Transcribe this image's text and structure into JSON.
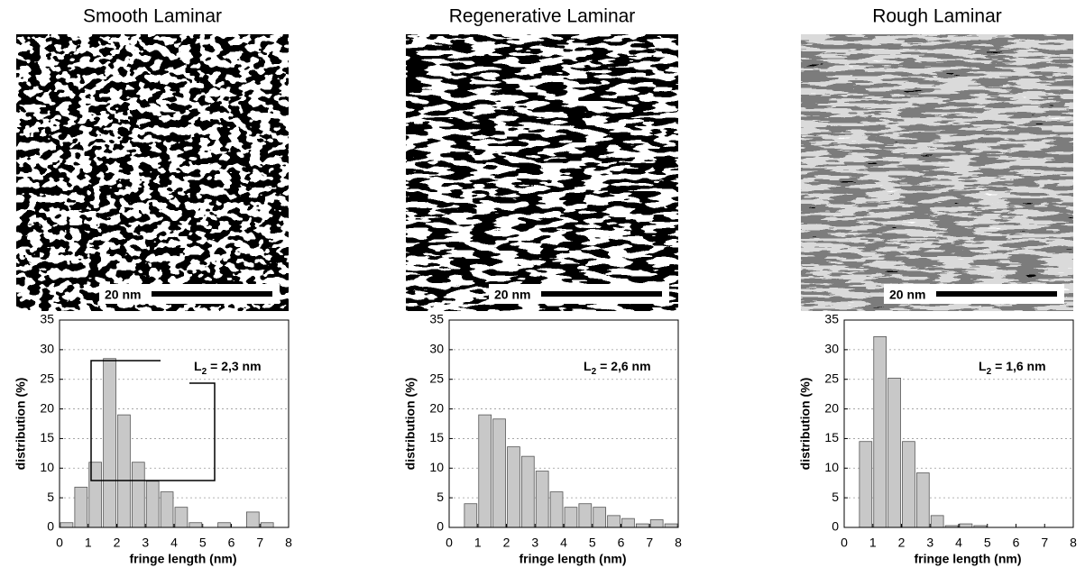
{
  "chart_data": [
    {
      "type": "histogram",
      "title": "Smooth Laminar",
      "scale_bar_label": "20 nm",
      "bins": [
        0,
        0.5,
        1,
        1.5,
        2,
        2.5,
        3,
        3.5,
        4,
        4.5,
        5,
        5.5,
        6,
        6.5,
        7,
        7.5,
        8
      ],
      "values": [
        0.8,
        6.8,
        11,
        28.5,
        19,
        11,
        7.8,
        6,
        3.4,
        0.8,
        0,
        0.8,
        0,
        2.6,
        0.8,
        0
      ],
      "color": "#c8c8c8",
      "xlim": [
        0,
        8
      ],
      "ylim": [
        0,
        35
      ],
      "xticks": [
        0,
        1,
        2,
        3,
        4,
        5,
        6,
        7,
        8
      ],
      "yticks": [
        0,
        5,
        10,
        15,
        20,
        25,
        30,
        35
      ],
      "grid": true,
      "xlabel": "fringe length (nm)",
      "ylabel": "distribution (%)",
      "annotation_symbol": "L",
      "annotation_subscript": "2",
      "annotation_value": "= 2,3 nm"
    },
    {
      "type": "histogram",
      "title": "Regenerative Laminar",
      "scale_bar_label": "20 nm",
      "bins": [
        0,
        0.5,
        1,
        1.5,
        2,
        2.5,
        3,
        3.5,
        4,
        4.5,
        5,
        5.5,
        6,
        6.5,
        7,
        7.5,
        8
      ],
      "values": [
        0,
        4,
        19,
        18.3,
        13.6,
        12,
        9.5,
        6,
        3.4,
        4,
        3.4,
        2,
        1.5,
        0.6,
        1.3,
        0.6
      ],
      "color": "#c8c8c8",
      "xlim": [
        0,
        8
      ],
      "ylim": [
        0,
        35
      ],
      "xticks": [
        0,
        1,
        2,
        3,
        4,
        5,
        6,
        7,
        8
      ],
      "yticks": [
        0,
        5,
        10,
        15,
        20,
        25,
        30,
        35
      ],
      "grid": true,
      "xlabel": "fringe length (nm)",
      "ylabel": "distribution (%)",
      "annotation_symbol": "L",
      "annotation_subscript": "2",
      "annotation_value": "= 2,6 nm"
    },
    {
      "type": "histogram",
      "title": "Rough Laminar",
      "scale_bar_label": "20 nm",
      "bins": [
        0,
        0.5,
        1,
        1.5,
        2,
        2.5,
        3,
        3.5,
        4,
        4.5,
        5,
        5.5,
        6,
        6.5,
        7,
        7.5,
        8
      ],
      "values": [
        0,
        14.5,
        32.2,
        25.2,
        14.5,
        9.2,
        2,
        0.3,
        0.6,
        0.3,
        0,
        0,
        0,
        0,
        0,
        0
      ],
      "color": "#c8c8c8",
      "xlim": [
        0,
        8
      ],
      "ylim": [
        0,
        35
      ],
      "xticks": [
        0,
        1,
        2,
        3,
        4,
        5,
        6,
        7,
        8
      ],
      "yticks": [
        0,
        5,
        10,
        15,
        20,
        25,
        30,
        35
      ],
      "grid": true,
      "xlabel": "fringe length (nm)",
      "ylabel": "distribution (%)",
      "annotation_symbol": "L",
      "annotation_subscript": "2",
      "annotation_value": "= 1,6 nm"
    }
  ]
}
